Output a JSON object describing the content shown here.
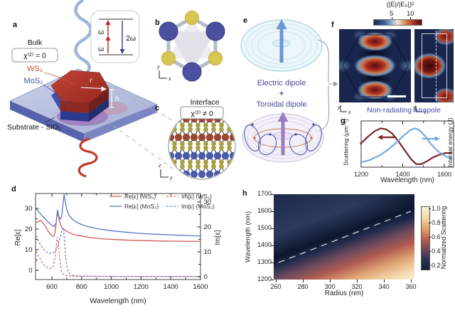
{
  "panels": {
    "a": {
      "label": "a",
      "bulk": "Bulk",
      "chi": "χ⁽²⁾ = 0",
      "ws2": "WS₂",
      "mos2": "MoS₂",
      "substrate": "Substrate - SiO₂",
      "r": "r",
      "h": "h",
      "omega_low": "ω",
      "omega_high": "ω",
      "two_omega": "2ω"
    },
    "b": {
      "label": "b",
      "axis_v": "y",
      "axis_h": "x"
    },
    "c": {
      "label": "c",
      "interface": "Interface",
      "chi": "χ⁽²⁾ ≠ 0",
      "axis_v": "z",
      "axis_h": "y"
    },
    "d": {
      "label": "d"
    },
    "e": {
      "label": "e",
      "electric": "Electric dipole",
      "plus": "+",
      "toroidal": "Toroidal dipole"
    },
    "f": {
      "label": "f",
      "colorbar_title": "(|E|/|E₀|)²",
      "tick_5": "5",
      "tick_10": "10",
      "axis_left_v": "y",
      "axis_left_h": "x",
      "axis_right_v": "y",
      "axis_right_h": "z"
    },
    "g": {
      "label": "g",
      "title": "Non-radiating Anapole"
    },
    "h": {
      "label": "h"
    }
  },
  "colors": {
    "ws2_label": "#c8502a",
    "mos2_label": "#3f51a3",
    "title_purple": "#4a4ab0",
    "field_low": "#18254c",
    "field_high": "#641008",
    "substrate_top": "#b6c0e0",
    "ws2_crystal": "#aa332c",
    "mos2_crystal": "#3f52ae",
    "glow_pink": "#ff4fd8"
  },
  "chart_data": [
    {
      "id": "d",
      "type": "line",
      "xlabel": "Wavelength (nm)",
      "ylabel_left": "Re[ε]",
      "ylabel_right": "Im[ε]",
      "xlim": [
        490,
        1600
      ],
      "ylim_left": [
        -4.5,
        37
      ],
      "ylim_right": [
        -1,
        34
      ],
      "xticks": [
        600,
        800,
        1000,
        1200,
        1400,
        1600
      ],
      "yticks_left": [
        0,
        10,
        20,
        30
      ],
      "yticks_right": [
        0,
        10,
        20,
        30
      ],
      "grid": false,
      "legend_position": "top-inside",
      "series": [
        {
          "name": "Re[ε] (WS₂)",
          "axis": "left",
          "style": "solid",
          "color": "#d05c55",
          "points": [
            [
              495,
              23.2
            ],
            [
              510,
              23.8
            ],
            [
              525,
              24.2
            ],
            [
              540,
              23.0
            ],
            [
              560,
              20.8
            ],
            [
              580,
              18.4
            ],
            [
              600,
              16.8
            ],
            [
              612,
              16.4
            ],
            [
              622,
              18.5
            ],
            [
              632,
              25.5
            ],
            [
              640,
              28.2
            ],
            [
              648,
              25.0
            ],
            [
              658,
              22.0
            ],
            [
              670,
              20.6
            ],
            [
              685,
              19.6
            ],
            [
              700,
              18.9
            ],
            [
              730,
              17.8
            ],
            [
              770,
              17.0
            ],
            [
              820,
              16.3
            ],
            [
              880,
              15.7
            ],
            [
              950,
              15.2
            ],
            [
              1030,
              14.9
            ],
            [
              1120,
              14.6
            ],
            [
              1220,
              14.4
            ],
            [
              1330,
              14.2
            ],
            [
              1450,
              14.1
            ],
            [
              1600,
              14.0
            ]
          ]
        },
        {
          "name": "Re[ε] (MoS₂)",
          "axis": "left",
          "style": "solid",
          "color": "#5b74c4",
          "points": [
            [
              495,
              29.8
            ],
            [
              520,
              27.6
            ],
            [
              550,
              25.2
            ],
            [
              580,
              23.0
            ],
            [
              600,
              21.8
            ],
            [
              615,
              21.2
            ],
            [
              628,
              23.0
            ],
            [
              638,
              29.3
            ],
            [
              646,
              26.5
            ],
            [
              656,
              24.8
            ],
            [
              666,
              26.0
            ],
            [
              676,
              33.0
            ],
            [
              682,
              36.8
            ],
            [
              690,
              33.5
            ],
            [
              700,
              29.5
            ],
            [
              715,
              26.8
            ],
            [
              735,
              25.0
            ],
            [
              760,
              23.6
            ],
            [
              800,
              22.2
            ],
            [
              850,
              21.0
            ],
            [
              920,
              20.0
            ],
            [
              1000,
              19.2
            ],
            [
              1090,
              18.5
            ],
            [
              1190,
              17.9
            ],
            [
              1300,
              17.5
            ],
            [
              1420,
              17.1
            ],
            [
              1600,
              16.6
            ]
          ]
        },
        {
          "name": "Im[ε] (WS₂)",
          "axis": "right",
          "style": "dashed",
          "color": "#e07068",
          "points": [
            [
              495,
              10.2
            ],
            [
              515,
              7.8
            ],
            [
              535,
              5.6
            ],
            [
              555,
              4.2
            ],
            [
              575,
              3.4
            ],
            [
              595,
              3.3
            ],
            [
              610,
              4.4
            ],
            [
              622,
              8.0
            ],
            [
              630,
              13.0
            ],
            [
              636,
              15.8
            ],
            [
              642,
              14.5
            ],
            [
              650,
              9.0
            ],
            [
              658,
              4.5
            ],
            [
              666,
              2.2
            ],
            [
              676,
              1.0
            ],
            [
              690,
              0.5
            ],
            [
              710,
              0.3
            ],
            [
              760,
              0.2
            ],
            [
              900,
              0.15
            ],
            [
              1200,
              0.1
            ],
            [
              1600,
              0.1
            ]
          ]
        },
        {
          "name": "Im[ε] (MoS₂)",
          "axis": "right",
          "style": "dashed",
          "color": "#7287d6",
          "points": [
            [
              495,
              16.4
            ],
            [
              515,
              13.6
            ],
            [
              540,
              11.2
            ],
            [
              565,
              9.9
            ],
            [
              590,
              9.3
            ],
            [
              610,
              9.6
            ],
            [
              628,
              10.8
            ],
            [
              642,
              12.8
            ],
            [
              655,
              15.5
            ],
            [
              666,
              18.5
            ],
            [
              672,
              19.8
            ],
            [
              678,
              19.0
            ],
            [
              686,
              14.0
            ],
            [
              694,
              7.5
            ],
            [
              702,
              3.8
            ],
            [
              712,
              1.8
            ],
            [
              726,
              0.8
            ],
            [
              750,
              0.4
            ],
            [
              800,
              0.2
            ],
            [
              1000,
              0.12
            ],
            [
              1600,
              0.1
            ]
          ]
        }
      ]
    },
    {
      "id": "g",
      "type": "line",
      "title": "Non-radiating Anapole",
      "xlabel": "Wavelength (nm)",
      "ylabel_left": "Scattering (μm⁻²)",
      "ylabel_right": "Internal energy (J)",
      "xlim": [
        1193,
        1638
      ],
      "xticks": [
        1200,
        1400,
        1600
      ],
      "xticks_minor": [
        1300,
        1500
      ],
      "series": [
        {
          "name": "Scattering",
          "color": "#7a2428",
          "arrow": "left",
          "points": [
            [
              1195,
              0.52
            ],
            [
              1230,
              0.68
            ],
            [
              1265,
              0.82
            ],
            [
              1295,
              0.88
            ],
            [
              1320,
              0.86
            ],
            [
              1350,
              0.76
            ],
            [
              1380,
              0.58
            ],
            [
              1410,
              0.38
            ],
            [
              1440,
              0.18
            ],
            [
              1465,
              0.07
            ],
            [
              1490,
              0.07
            ],
            [
              1515,
              0.13
            ],
            [
              1545,
              0.22
            ],
            [
              1575,
              0.28
            ],
            [
              1605,
              0.32
            ],
            [
              1638,
              0.33
            ]
          ]
        },
        {
          "name": "Internal energy",
          "color": "#74a8e0",
          "arrow": "right",
          "points": [
            [
              1195,
              0.1
            ],
            [
              1240,
              0.16
            ],
            [
              1290,
              0.27
            ],
            [
              1330,
              0.4
            ],
            [
              1370,
              0.56
            ],
            [
              1410,
              0.74
            ],
            [
              1440,
              0.85
            ],
            [
              1460,
              0.88
            ],
            [
              1480,
              0.84
            ],
            [
              1505,
              0.72
            ],
            [
              1530,
              0.56
            ],
            [
              1560,
              0.4
            ],
            [
              1590,
              0.29
            ],
            [
              1615,
              0.23
            ],
            [
              1638,
              0.2
            ]
          ]
        }
      ]
    },
    {
      "id": "h",
      "type": "heatmap",
      "xlabel": "Radius (nm)",
      "ylabel": "Wavelength (nm)",
      "xlim": [
        258,
        363
      ],
      "ylim": [
        1200,
        1700
      ],
      "xticks": [
        260,
        280,
        300,
        320,
        340,
        360
      ],
      "yticks": [
        1200,
        1300,
        1400,
        1500,
        1600,
        1700
      ],
      "colorbar": {
        "label": "Normalized Scattering",
        "ticks": [
          "1.0",
          "0.8",
          "0.6",
          "0.4",
          "0.2"
        ]
      },
      "anapole_line": {
        "x1": 262,
        "y1": 1300,
        "x2": 360,
        "y2": 1600
      },
      "description": "Dark scattering minimum band follows the anapole line from (260 nm, 1300 nm) to (360 nm, 1600 nm); normalized scattering rises to ~1.0 toward large radius and short wavelength (bottom-right)."
    }
  ]
}
